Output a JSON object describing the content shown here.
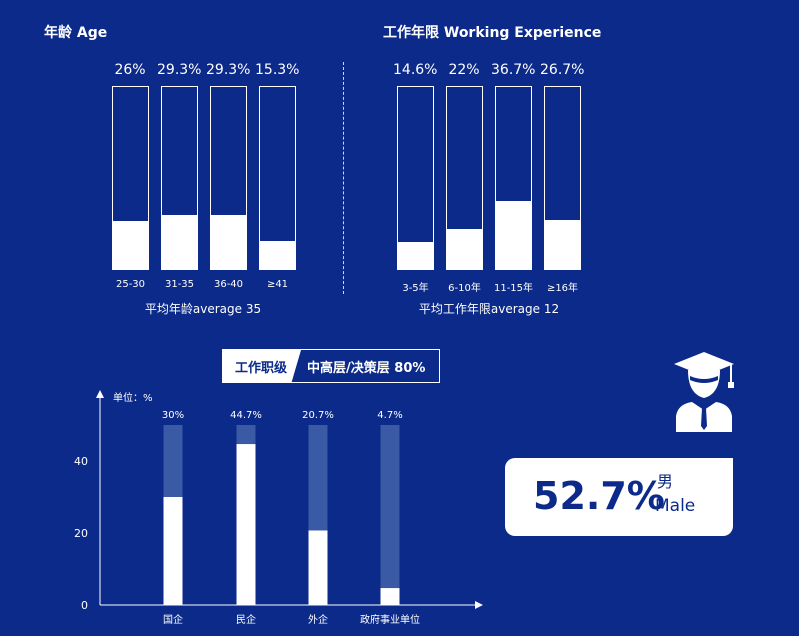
{
  "age": {
    "title": "年龄  Age",
    "items": [
      {
        "label": "26%",
        "value": 26,
        "category": "25-30"
      },
      {
        "label": "29.3%",
        "value": 29.3,
        "category": "31-35"
      },
      {
        "label": "29.3%",
        "value": 29.3,
        "category": "36-40"
      },
      {
        "label": "15.3%",
        "value": 15.3,
        "category": "≥41"
      }
    ],
    "caption": "平均年龄average 35"
  },
  "experience": {
    "title": "工作年限  Working Experience",
    "items": [
      {
        "label": "14.6%",
        "value": 14.6,
        "category": "3-5年"
      },
      {
        "label": "22%",
        "value": 22,
        "category": "6-10年"
      },
      {
        "label": "36.7%",
        "value": 36.7,
        "category": "11-15年"
      },
      {
        "label": "26.7%",
        "value": 26.7,
        "category": "≥16年"
      }
    ],
    "caption": "平均工作年限average 12"
  },
  "job_level": {
    "tag_label": "工作职级",
    "tag_value": "中高层/决策层 80%"
  },
  "male": {
    "percent": "52.7%",
    "label_zh": "男",
    "label_en": "Male"
  },
  "colors": {
    "background": "#0b2a8a",
    "bar_track": "#3a5aa6",
    "fill": "#ffffff"
  },
  "icons": [
    "graduate-icon"
  ],
  "chart_data": [
    {
      "type": "bar",
      "title": "年龄  Age",
      "categories": [
        "25-30",
        "31-35",
        "36-40",
        "≥41"
      ],
      "values": [
        26,
        29.3,
        29.3,
        15.3
      ],
      "unit": "%",
      "caption": "平均年龄average 35"
    },
    {
      "type": "bar",
      "title": "工作年限  Working Experience",
      "categories": [
        "3-5年",
        "6-10年",
        "11-15年",
        "≥16年"
      ],
      "values": [
        14.6,
        22,
        36.7,
        26.7
      ],
      "unit": "%",
      "caption": "平均工作年限average 12"
    },
    {
      "type": "bar",
      "categories": [
        "国企",
        "民企",
        "外企",
        "政府事业单位"
      ],
      "values": [
        30,
        44.7,
        20.7,
        4.7
      ],
      "value_labels": [
        "30%",
        "44.7%",
        "20.7%",
        "4.7%"
      ],
      "ylabel": "单位：%",
      "yticks": [
        0,
        20,
        40
      ],
      "ylim": [
        0,
        50
      ],
      "grid": false
    }
  ]
}
